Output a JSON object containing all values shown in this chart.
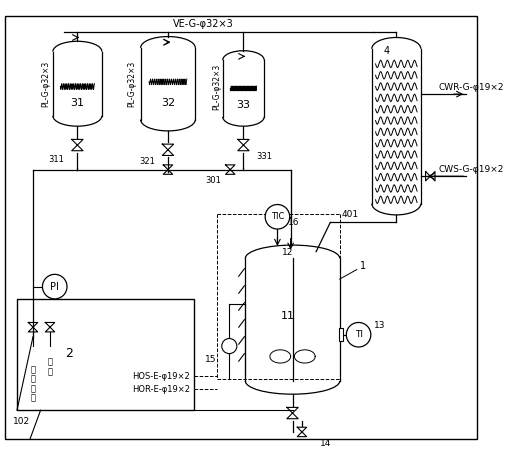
{
  "bg_color": "#ffffff",
  "fig_width": 5.11,
  "fig_height": 4.59,
  "dpi": 100,
  "labels": {
    "VE": "VE-G-φ32×3",
    "CWR": "CWR-G-φ19×2",
    "CWS": "CWS-G-φ19×2",
    "PL1": "PL-G-φ32×3",
    "PL2": "PL-G-φ32×3",
    "PL3": "PL-G-φ32×3",
    "HOS": "HOS-E-φ19×2",
    "HOR": "HOR-E-φ19×2"
  }
}
